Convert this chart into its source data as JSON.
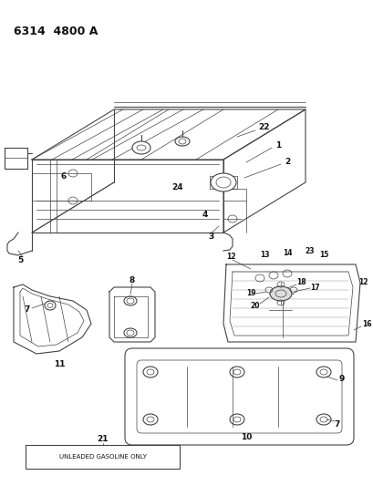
{
  "title": "6314  4800 A",
  "bg": "#ffffff",
  "lc": "#444444",
  "tc": "#111111",
  "label_box_text": "UNLEADED GASOLINE ONLY",
  "fig_width": 4.1,
  "fig_height": 5.33,
  "dpi": 100
}
